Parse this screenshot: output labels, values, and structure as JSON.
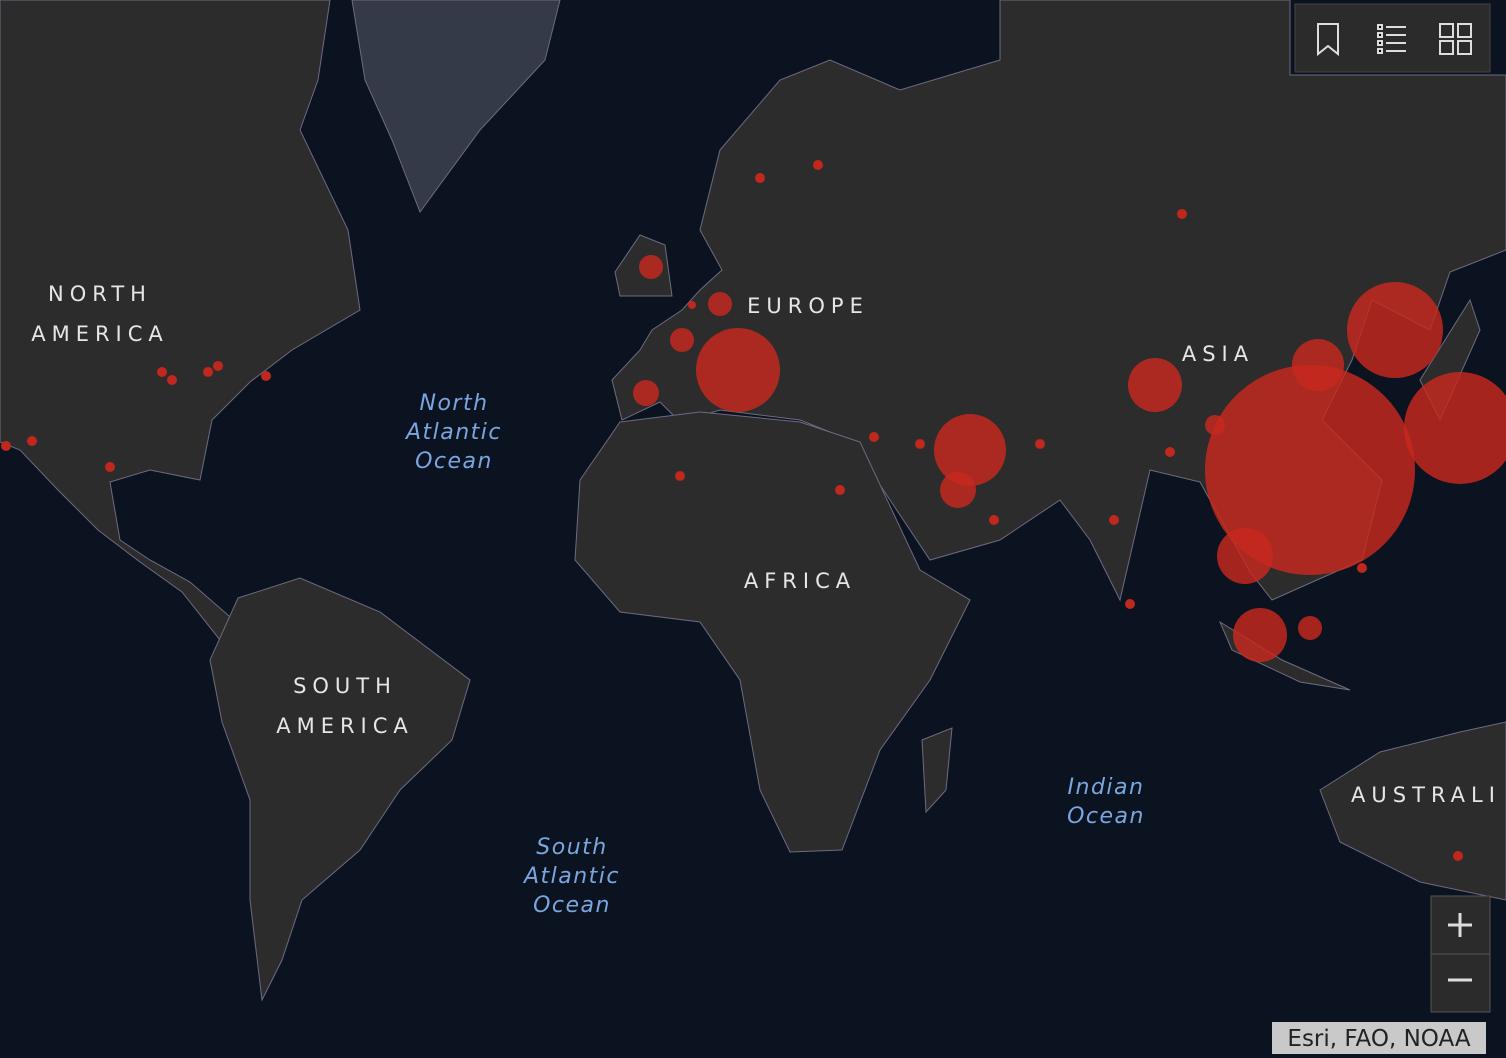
{
  "map": {
    "continent_labels": [
      [
        "NORTH",
        "AMERICA"
      ],
      [
        "EUROPE"
      ],
      [
        "ASIA"
      ],
      [
        "AFRICA"
      ],
      [
        "SOUTH",
        "AMERICA"
      ],
      [
        "AUSTRALI"
      ]
    ],
    "ocean_labels": [
      [
        "North",
        "Atlantic",
        "Ocean"
      ],
      [
        "South",
        "Atlantic",
        "Ocean"
      ],
      [
        "Indian",
        "Ocean"
      ]
    ],
    "attribution": "Esri, FAO, NOAA"
  }
}
